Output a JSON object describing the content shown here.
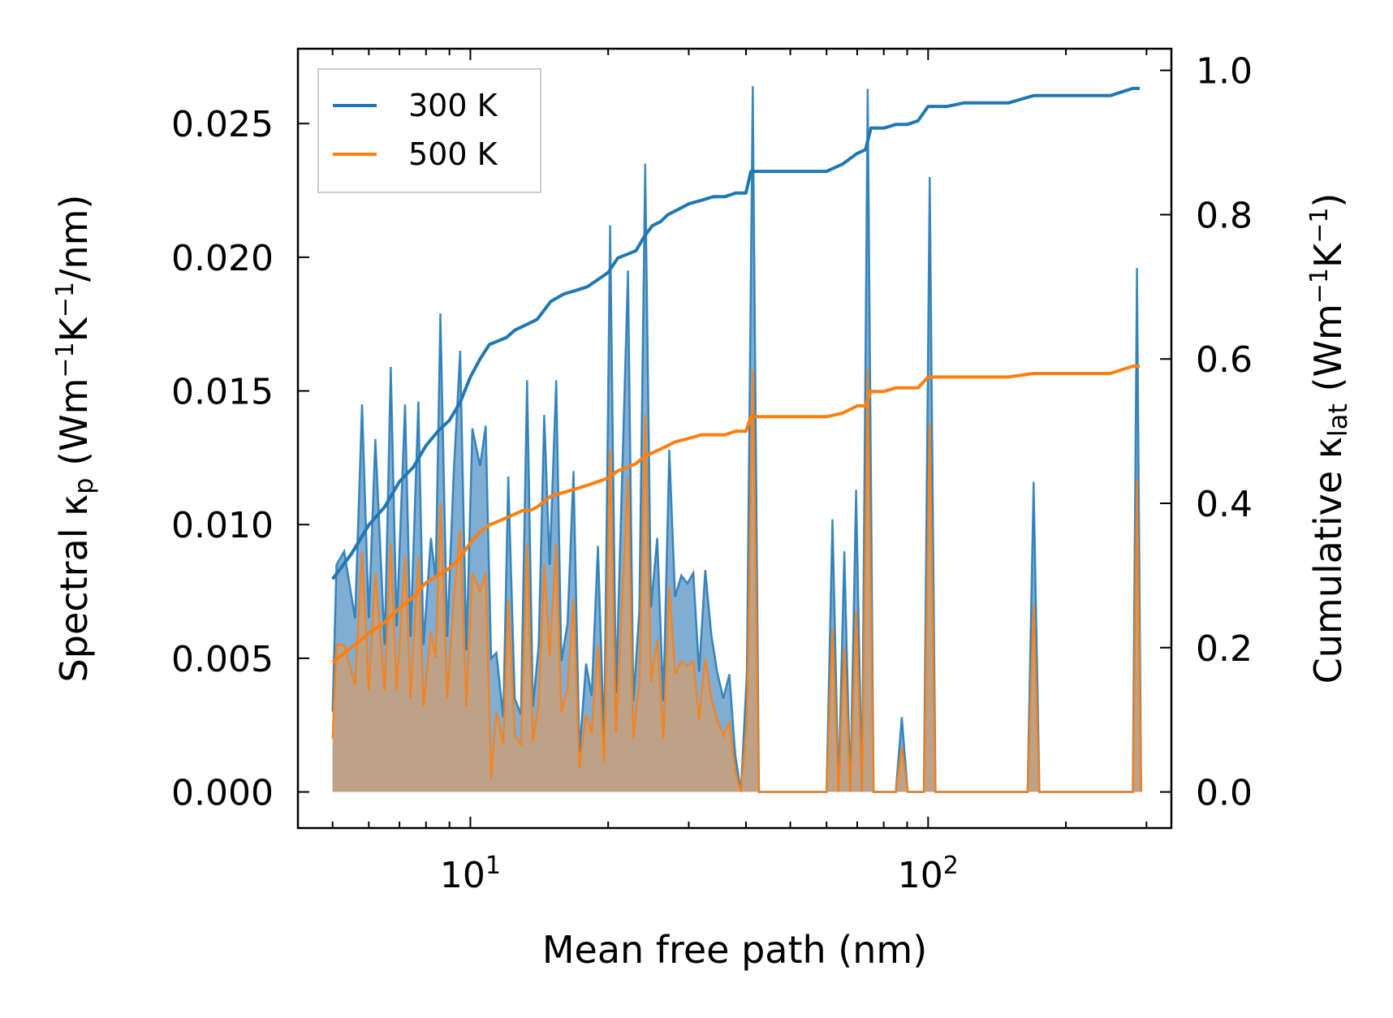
{
  "chart_data": {
    "type": "line",
    "xscale": "log",
    "xlabel": "Mean free path (nm)",
    "ylabel_left": "Spectral κ",
    "ylabel_left_sub": "p",
    "ylabel_left_unit_open": " (Wm",
    "ylabel_left_unit_exp1": "−1",
    "ylabel_left_unit_mid": "K",
    "ylabel_left_unit_exp2": "−1",
    "ylabel_left_unit_close": "/nm)",
    "ylabel_right": "Cumulative κ",
    "ylabel_right_sub": "lat",
    "ylabel_right_unit_open": " (Wm",
    "ylabel_right_unit_exp1": "−1",
    "ylabel_right_unit_mid": "K",
    "ylabel_right_unit_exp2": "−1",
    "ylabel_right_unit_close": ")",
    "xlim": [
      4.2,
      340
    ],
    "ylim_left": [
      -0.00135,
      0.0278
    ],
    "ylim_right": [
      -0.05,
      1.03
    ],
    "x_ticks": [
      {
        "value": 10,
        "base": "10",
        "exp": "1"
      },
      {
        "value": 100,
        "base": "10",
        "exp": "2"
      }
    ],
    "y_ticks_left": [
      "0.000",
      "0.005",
      "0.010",
      "0.015",
      "0.020",
      "0.025"
    ],
    "y_ticks_right": [
      "0.0",
      "0.2",
      "0.4",
      "0.6",
      "0.8",
      "1.0"
    ],
    "legend": {
      "position": "top-left",
      "entries": [
        "300 K",
        "500 K"
      ]
    },
    "colors": {
      "s300": "#1f77b4",
      "s500": "#ff7f0e",
      "fill300": "#6a9fcb",
      "fill500": "#c8a07a"
    },
    "spectral_300K": {
      "x": [
        5.0,
        5.1,
        5.3,
        5.6,
        5.8,
        6.0,
        6.2,
        6.5,
        6.7,
        6.9,
        7.2,
        7.4,
        7.7,
        7.9,
        8.2,
        8.4,
        8.6,
        8.9,
        9.2,
        9.5,
        9.8,
        10.1,
        10.5,
        10.8,
        11.1,
        11.4,
        11.8,
        12.1,
        12.5,
        12.9,
        13.3,
        13.7,
        14.1,
        14.5,
        14.9,
        15.4,
        15.8,
        16.3,
        16.8,
        17.3,
        17.9,
        18.4,
        19.0,
        19.6,
        20.2,
        20.8,
        21.4,
        22.1,
        22.7,
        23.4,
        24.1,
        24.8,
        25.6,
        26.4,
        27.2,
        28.0,
        28.9,
        29.8,
        30.7,
        31.6,
        32.6,
        33.6,
        34.6,
        35.7,
        36.8,
        37.9,
        39.0,
        40.2,
        41.4,
        42.7,
        44.0,
        60.0,
        61.8,
        63.7,
        65.6,
        67.6,
        69.6,
        71.7,
        73.8,
        76.0,
        78.3,
        85.0,
        87.6,
        90.2,
        95.0,
        97.9,
        100.8,
        103.8,
        107.0,
        165.0,
        170.0,
        175.0,
        180.0,
        280.0,
        286.0,
        292.0
      ],
      "y": [
        0.003,
        0.0085,
        0.009,
        0.0065,
        0.0145,
        0.0065,
        0.0132,
        0.0055,
        0.0159,
        0.0062,
        0.0145,
        0.0058,
        0.0146,
        0.0055,
        0.0095,
        0.008,
        0.0179,
        0.0058,
        0.012,
        0.0165,
        0.0053,
        0.0136,
        0.0122,
        0.0137,
        0.005,
        0.0052,
        0.0028,
        0.0118,
        0.0035,
        0.0029,
        0.0154,
        0.0032,
        0.0055,
        0.0141,
        0.0085,
        0.0154,
        0.0049,
        0.0063,
        0.012,
        0.0015,
        0.0048,
        0.0036,
        0.0092,
        0.0018,
        0.0212,
        0.0037,
        0.0112,
        0.0195,
        0.0034,
        0.0068,
        0.0235,
        0.0069,
        0.0095,
        0.0034,
        0.0128,
        0.0073,
        0.0081,
        0.0078,
        0.0082,
        0.0045,
        0.0083,
        0.0059,
        0.0045,
        0.0035,
        0.0044,
        0.0014,
        0.0,
        0.0045,
        0.0264,
        0.0,
        0.0,
        0.0,
        0.0102,
        0.0,
        0.009,
        0.0,
        0.0113,
        0.0,
        0.0263,
        0.0,
        0.0,
        0.0,
        0.0028,
        0.0,
        0.0,
        0.0,
        0.023,
        0.0,
        0.0,
        0.0,
        0.0116,
        0.0,
        0.0,
        0.0,
        0.0196,
        0.0
      ]
    },
    "spectral_500K": {
      "x": [
        5.0,
        5.1,
        5.3,
        5.6,
        5.8,
        6.0,
        6.2,
        6.5,
        6.7,
        6.9,
        7.2,
        7.4,
        7.7,
        7.9,
        8.2,
        8.4,
        8.6,
        8.9,
        9.2,
        9.5,
        9.8,
        10.1,
        10.5,
        10.8,
        11.1,
        11.4,
        11.8,
        12.1,
        12.5,
        12.9,
        13.3,
        13.7,
        14.1,
        14.5,
        14.9,
        15.4,
        15.8,
        16.3,
        16.8,
        17.3,
        17.9,
        18.4,
        19.0,
        19.6,
        20.2,
        20.8,
        21.4,
        22.1,
        22.7,
        23.4,
        24.1,
        24.8,
        25.6,
        26.4,
        27.2,
        28.0,
        28.9,
        29.8,
        30.7,
        31.6,
        32.6,
        33.6,
        34.6,
        35.7,
        36.8,
        37.9,
        39.0,
        40.2,
        41.4,
        42.7,
        44.0,
        60.0,
        61.8,
        63.7,
        65.6,
        67.6,
        69.6,
        71.7,
        73.8,
        76.0,
        78.3,
        85.0,
        87.6,
        90.2,
        95.0,
        97.9,
        100.8,
        103.8,
        107.0,
        165.0,
        170.0,
        175.0,
        180.0,
        280.0,
        286.0,
        292.0
      ],
      "y": [
        0.002,
        0.0055,
        0.0055,
        0.004,
        0.009,
        0.0038,
        0.0082,
        0.0038,
        0.0093,
        0.0038,
        0.0088,
        0.0035,
        0.0088,
        0.0032,
        0.006,
        0.005,
        0.0108,
        0.0035,
        0.0072,
        0.0098,
        0.0032,
        0.0082,
        0.0075,
        0.0082,
        0.0005,
        0.003,
        0.0018,
        0.0072,
        0.0021,
        0.0018,
        0.0093,
        0.0019,
        0.0033,
        0.0085,
        0.0051,
        0.0093,
        0.003,
        0.0038,
        0.0072,
        0.0009,
        0.0029,
        0.0022,
        0.0055,
        0.0011,
        0.0128,
        0.0022,
        0.0067,
        0.0118,
        0.002,
        0.0041,
        0.0141,
        0.0041,
        0.0057,
        0.002,
        0.0077,
        0.0044,
        0.0049,
        0.0047,
        0.0049,
        0.0027,
        0.005,
        0.0035,
        0.0027,
        0.0021,
        0.0026,
        0.0008,
        0.0,
        0.0027,
        0.0158,
        0.0,
        0.0,
        0.0,
        0.0061,
        0.0,
        0.0054,
        0.0,
        0.0068,
        0.0,
        0.0158,
        0.0,
        0.0,
        0.0,
        0.0017,
        0.0,
        0.0,
        0.0,
        0.0138,
        0.0,
        0.0,
        0.0,
        0.007,
        0.0,
        0.0,
        0.0,
        0.0117,
        0.0
      ]
    },
    "cumulative_300K": {
      "x": [
        5.0,
        5.5,
        6.0,
        6.5,
        7.0,
        7.5,
        8.0,
        8.5,
        9.0,
        9.5,
        10.0,
        10.5,
        11.0,
        11.5,
        12.0,
        12.5,
        13.0,
        13.5,
        14.0,
        15.0,
        16.0,
        17.0,
        18.0,
        19.0,
        20.0,
        21.0,
        22.0,
        23.0,
        24.0,
        25.0,
        26.0,
        27.0,
        28.0,
        30.0,
        32.0,
        34.0,
        36.0,
        38.0,
        40.0,
        41.0,
        45.0,
        50.0,
        55.0,
        60.0,
        65.0,
        70.0,
        73.0,
        75.0,
        80.0,
        85.0,
        90.0,
        95.0,
        100.0,
        110.0,
        120.0,
        150.0,
        170.0,
        200.0,
        250.0,
        280.0,
        290.0
      ],
      "y": [
        0.295,
        0.33,
        0.37,
        0.395,
        0.43,
        0.45,
        0.48,
        0.5,
        0.515,
        0.54,
        0.575,
        0.6,
        0.62,
        0.625,
        0.63,
        0.64,
        0.645,
        0.65,
        0.655,
        0.68,
        0.69,
        0.695,
        0.7,
        0.71,
        0.72,
        0.74,
        0.745,
        0.75,
        0.77,
        0.785,
        0.79,
        0.8,
        0.805,
        0.815,
        0.82,
        0.825,
        0.825,
        0.83,
        0.83,
        0.86,
        0.86,
        0.86,
        0.86,
        0.86,
        0.87,
        0.885,
        0.89,
        0.92,
        0.92,
        0.925,
        0.925,
        0.93,
        0.95,
        0.95,
        0.955,
        0.955,
        0.965,
        0.965,
        0.965,
        0.975,
        0.975
      ]
    },
    "cumulative_500K": {
      "x": [
        5.0,
        5.5,
        6.0,
        6.5,
        7.0,
        7.5,
        8.0,
        8.5,
        9.0,
        9.5,
        10.0,
        10.5,
        11.0,
        11.5,
        12.0,
        12.5,
        13.0,
        13.5,
        14.0,
        15.0,
        16.0,
        17.0,
        18.0,
        19.0,
        20.0,
        21.0,
        22.0,
        23.0,
        24.0,
        25.0,
        26.0,
        27.0,
        28.0,
        30.0,
        32.0,
        34.0,
        36.0,
        38.0,
        40.0,
        41.0,
        45.0,
        50.0,
        55.0,
        60.0,
        65.0,
        70.0,
        73.0,
        75.0,
        80.0,
        85.0,
        90.0,
        95.0,
        100.0,
        110.0,
        120.0,
        150.0,
        170.0,
        200.0,
        250.0,
        280.0,
        290.0
      ],
      "y": [
        0.18,
        0.2,
        0.22,
        0.235,
        0.255,
        0.27,
        0.29,
        0.3,
        0.31,
        0.325,
        0.345,
        0.36,
        0.37,
        0.375,
        0.38,
        0.385,
        0.39,
        0.39,
        0.395,
        0.41,
        0.415,
        0.42,
        0.425,
        0.43,
        0.435,
        0.445,
        0.45,
        0.455,
        0.465,
        0.47,
        0.475,
        0.48,
        0.485,
        0.49,
        0.495,
        0.495,
        0.495,
        0.5,
        0.5,
        0.52,
        0.52,
        0.52,
        0.52,
        0.52,
        0.525,
        0.535,
        0.535,
        0.555,
        0.555,
        0.56,
        0.56,
        0.56,
        0.575,
        0.575,
        0.575,
        0.575,
        0.58,
        0.58,
        0.58,
        0.59,
        0.59
      ]
    }
  }
}
